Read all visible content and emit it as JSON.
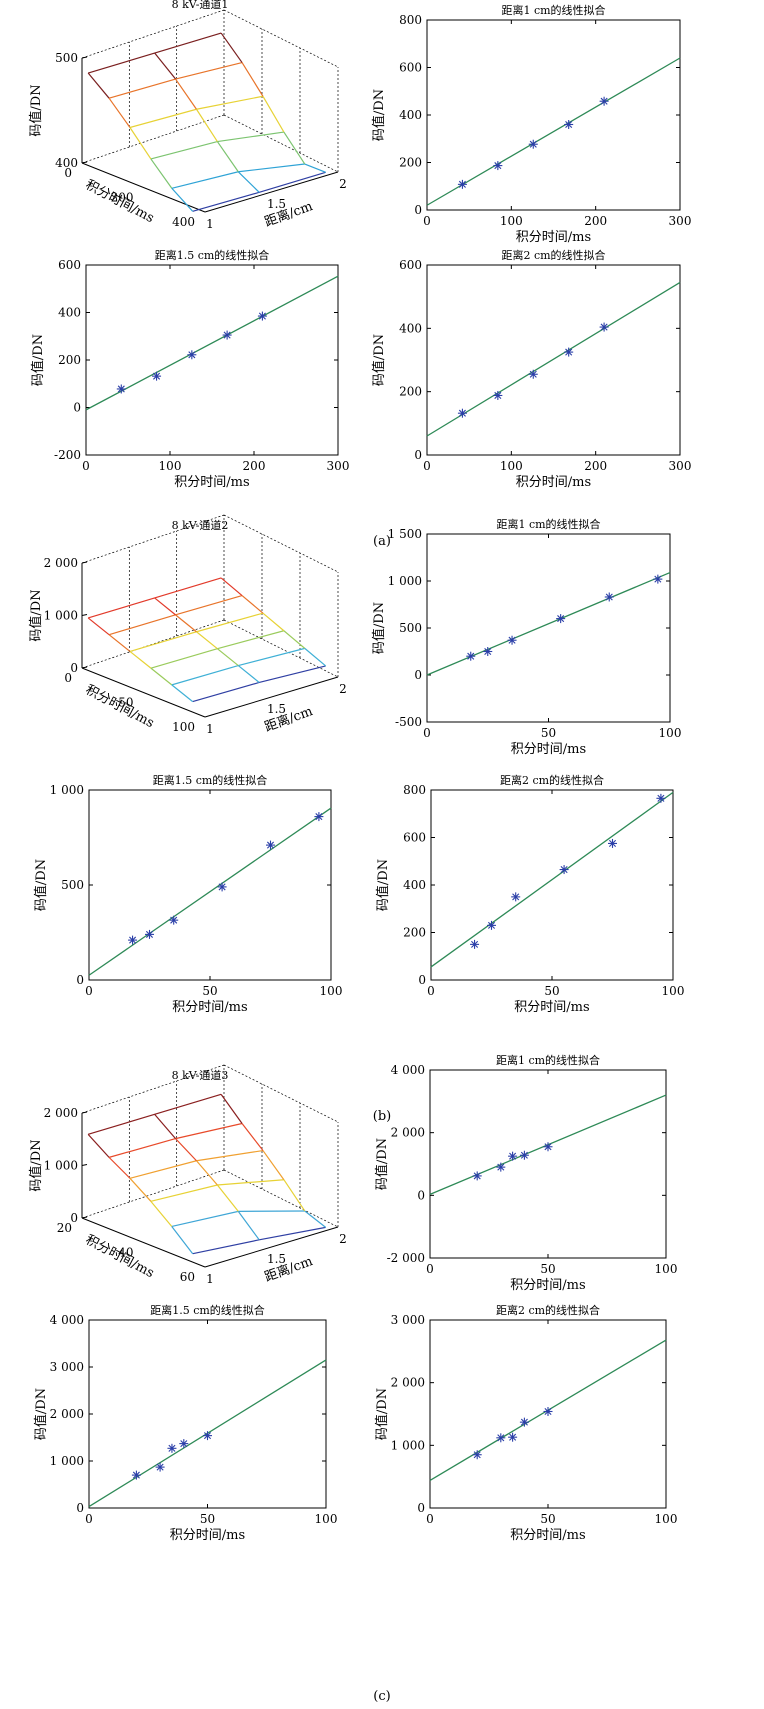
{
  "figure": {
    "captions": [
      "(a)",
      "(b)",
      "(c)"
    ]
  },
  "chart_data": [
    {
      "id": "a-3d",
      "type": "surface3d",
      "title": "8 kV-通道1",
      "zlabel": "码值/DN",
      "ylabel": "积分时间/ms",
      "xlabel": "距离/cm",
      "z_ticks": [
        "400",
        "500"
      ],
      "y_ticks": [
        "0",
        "200",
        "400"
      ],
      "x_ticks": [
        "1",
        "1.5",
        "2"
      ],
      "colors": [
        "#7a1f1f",
        "#e8742a",
        "#e7d235",
        "#7cc470",
        "#2fa3d6",
        "#2f3fa3"
      ]
    },
    {
      "id": "a-1",
      "type": "scatter+line",
      "title": "距离1 cm的线性拟合",
      "xlabel": "积分时间/ms",
      "ylabel": "码值/DN",
      "xlim": [
        0,
        300
      ],
      "ylim": [
        0,
        800
      ],
      "x_ticks": [
        "0",
        "100",
        "200",
        "300"
      ],
      "y_ticks": [
        "0",
        "200",
        "400",
        "600",
        "800"
      ],
      "points": [
        [
          42,
          108
        ],
        [
          84,
          187
        ],
        [
          126,
          277
        ],
        [
          168,
          360
        ],
        [
          210,
          458
        ]
      ],
      "fit": [
        [
          0,
          20
        ],
        [
          300,
          640
        ]
      ]
    },
    {
      "id": "a-2",
      "type": "scatter+line",
      "title": "距离1.5 cm的线性拟合",
      "xlabel": "积分时间/ms",
      "ylabel": "码值/DN",
      "xlim": [
        0,
        300
      ],
      "ylim": [
        -200,
        600
      ],
      "x_ticks": [
        "0",
        "100",
        "200",
        "300"
      ],
      "y_ticks": [
        "-200",
        "0",
        "200",
        "400",
        "600"
      ],
      "points": [
        [
          42,
          78
        ],
        [
          84,
          132
        ],
        [
          126,
          222
        ],
        [
          168,
          305
        ],
        [
          210,
          385
        ]
      ],
      "fit": [
        [
          0,
          -10
        ],
        [
          300,
          553
        ]
      ]
    },
    {
      "id": "a-3",
      "type": "scatter+line",
      "title": "距离2 cm的线性拟合",
      "xlabel": "积分时间/ms",
      "ylabel": "码值/DN",
      "xlim": [
        0,
        300
      ],
      "ylim": [
        0,
        600
      ],
      "x_ticks": [
        "0",
        "100",
        "200",
        "300"
      ],
      "y_ticks": [
        "0",
        "200",
        "400",
        "600"
      ],
      "points": [
        [
          42,
          132
        ],
        [
          84,
          188
        ],
        [
          126,
          255
        ],
        [
          168,
          325
        ],
        [
          210,
          404
        ]
      ],
      "fit": [
        [
          0,
          60
        ],
        [
          300,
          545
        ]
      ]
    },
    {
      "id": "b-3d",
      "type": "surface3d",
      "title": "8 kV-通道2",
      "zlabel": "码值/DN",
      "ylabel": "积分时间/ms",
      "xlabel": "距离/cm",
      "z_ticks": [
        "0",
        "1 000",
        "2 000"
      ],
      "y_ticks": [
        "0",
        "50",
        "100"
      ],
      "x_ticks": [
        "1",
        "1.5",
        "2"
      ],
      "colors": [
        "#e23a2a",
        "#e8742a",
        "#e7d235",
        "#9acb5c",
        "#3fb0d6",
        "#2f3fa3"
      ]
    },
    {
      "id": "b-1",
      "type": "scatter+line",
      "title": "距离1 cm的线性拟合",
      "xlabel": "积分时间/ms",
      "ylabel": "码值/DN",
      "xlim": [
        0,
        100
      ],
      "ylim": [
        -500,
        1500
      ],
      "x_ticks": [
        "0",
        "50",
        "100"
      ],
      "y_ticks": [
        "-500",
        "0",
        "500",
        "1 000",
        "1 500"
      ],
      "points": [
        [
          18,
          200
        ],
        [
          25,
          250
        ],
        [
          35,
          370
        ],
        [
          55,
          600
        ],
        [
          75,
          830
        ],
        [
          95,
          1020
        ]
      ],
      "fit": [
        [
          0,
          0
        ],
        [
          100,
          1090
        ]
      ]
    },
    {
      "id": "b-2",
      "type": "scatter+line",
      "title": "距离1.5 cm的线性拟合",
      "xlabel": "积分时间/ms",
      "ylabel": "码值/DN",
      "xlim": [
        0,
        100
      ],
      "ylim": [
        0,
        1000
      ],
      "x_ticks": [
        "0",
        "50",
        "100"
      ],
      "y_ticks": [
        "0",
        "500",
        "1 000"
      ],
      "points": [
        [
          18,
          210
        ],
        [
          25,
          240
        ],
        [
          35,
          315
        ],
        [
          55,
          490
        ],
        [
          75,
          710
        ],
        [
          95,
          860
        ]
      ],
      "fit": [
        [
          0,
          25
        ],
        [
          100,
          905
        ]
      ]
    },
    {
      "id": "b-3",
      "type": "scatter+line",
      "title": "距离2 cm的线性拟合",
      "xlabel": "积分时间/ms",
      "ylabel": "码值/DN",
      "xlim": [
        0,
        100
      ],
      "ylim": [
        0,
        800
      ],
      "x_ticks": [
        "0",
        "50",
        "100"
      ],
      "y_ticks": [
        "0",
        "200",
        "400",
        "600",
        "800"
      ],
      "points": [
        [
          18,
          150
        ],
        [
          25,
          230
        ],
        [
          35,
          350
        ],
        [
          55,
          465
        ],
        [
          75,
          575
        ],
        [
          95,
          765
        ]
      ],
      "fit": [
        [
          0,
          55
        ],
        [
          100,
          790
        ]
      ]
    },
    {
      "id": "c-3d",
      "type": "surface3d",
      "title": "8 kV-通道3",
      "zlabel": "码值/DN",
      "ylabel": "积分时间/ms",
      "xlabel": "距离/cm",
      "z_ticks": [
        "0",
        "1 000",
        "2 000"
      ],
      "y_ticks": [
        "20",
        "40",
        "60"
      ],
      "x_ticks": [
        "1",
        "1.5",
        "2"
      ],
      "colors": [
        "#8a1f1f",
        "#e84a2a",
        "#f0a030",
        "#e7d235",
        "#3fa6d6",
        "#2f3fa3"
      ]
    },
    {
      "id": "c-1",
      "type": "scatter+line",
      "title": "距离1 cm的线性拟合",
      "xlabel": "积分时间/ms",
      "ylabel": "码值/DN",
      "xlim": [
        0,
        100
      ],
      "ylim": [
        -2000,
        4000
      ],
      "x_ticks": [
        "0",
        "50",
        "100"
      ],
      "y_ticks": [
        "-2 000",
        "0",
        "2 000",
        "4 000"
      ],
      "points": [
        [
          20,
          620
        ],
        [
          30,
          900
        ],
        [
          35,
          1250
        ],
        [
          40,
          1280
        ],
        [
          50,
          1550
        ]
      ],
      "fit": [
        [
          0,
          30
        ],
        [
          100,
          3200
        ]
      ]
    },
    {
      "id": "c-2",
      "type": "scatter+line",
      "title": "距离1.5 cm的线性拟合",
      "xlabel": "积分时间/ms",
      "ylabel": "码值/DN",
      "xlim": [
        0,
        100
      ],
      "ylim": [
        0,
        4000
      ],
      "x_ticks": [
        "0",
        "50",
        "100"
      ],
      "y_ticks": [
        "0",
        "1 000",
        "2 000",
        "3 000",
        "4 000"
      ],
      "points": [
        [
          20,
          700
        ],
        [
          30,
          870
        ],
        [
          35,
          1270
        ],
        [
          40,
          1370
        ],
        [
          50,
          1540
        ]
      ],
      "fit": [
        [
          0,
          30
        ],
        [
          100,
          3150
        ]
      ]
    },
    {
      "id": "c-3",
      "type": "scatter+line",
      "title": "距离2 cm的线性拟合",
      "xlabel": "积分时间/ms",
      "ylabel": "码值/DN",
      "xlim": [
        0,
        100
      ],
      "ylim": [
        0,
        3000
      ],
      "x_ticks": [
        "0",
        "50",
        "100"
      ],
      "y_ticks": [
        "0",
        "1 000",
        "2 000",
        "3 000"
      ],
      "points": [
        [
          20,
          850
        ],
        [
          30,
          1120
        ],
        [
          35,
          1130
        ],
        [
          40,
          1370
        ],
        [
          50,
          1540
        ]
      ],
      "fit": [
        [
          0,
          440
        ],
        [
          100,
          2680
        ]
      ]
    }
  ]
}
